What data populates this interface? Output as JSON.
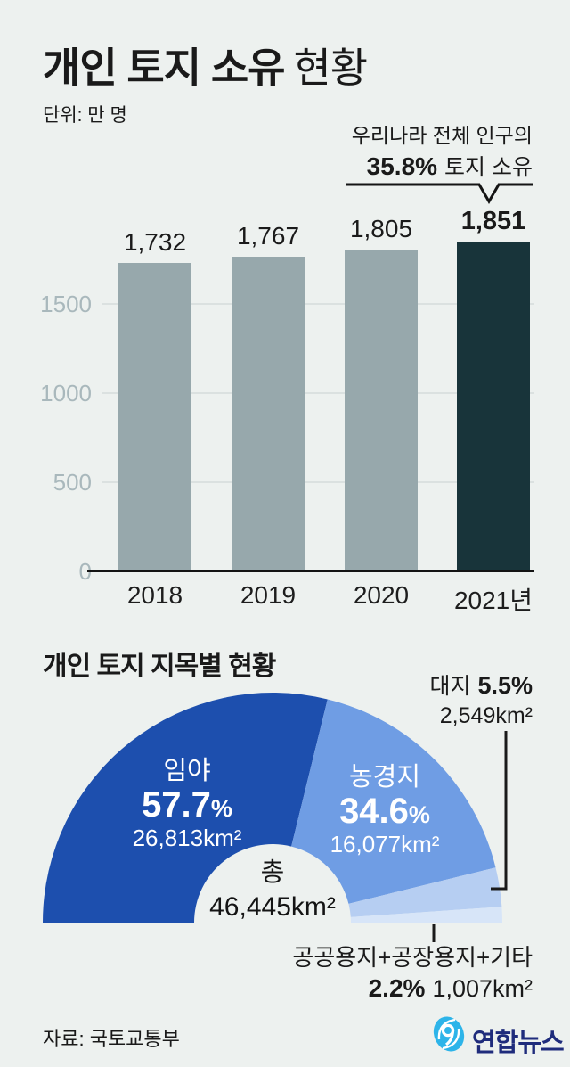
{
  "colors": {
    "background": "#edf1ef",
    "bar_fill": "#97a8ac",
    "bar_highlight": "#18343a",
    "grid": "#dbe1e0",
    "axis": "#141414",
    "tick_text": "#a9b8bc",
    "logo_blue": "#2db4e9",
    "logo_navy": "#1f2c7c",
    "donut_slices": [
      "#1d4fae",
      "#6f9de4",
      "#b6cef2",
      "#d7e5f8"
    ]
  },
  "header": {
    "title_bold": "개인 토지 소유",
    "title_rest": "현황",
    "unit": "단위: 만 명"
  },
  "annotation": {
    "line1": "우리나라 전체 인구의",
    "pct": "35.8%",
    "suffix": "토지 소유"
  },
  "section2_title": "개인 토지 지목별 현황",
  "percent_sign": "%",
  "chart_data": [
    {
      "type": "bar",
      "title": "개인 토지 소유 현황",
      "unit": "만 명",
      "categories": [
        "2018",
        "2019",
        "2020",
        "2021년"
      ],
      "values": [
        1732,
        1767,
        1805,
        1851
      ],
      "value_labels": [
        "1,732",
        "1,767",
        "1,805",
        "1,851"
      ],
      "yticks": [
        0,
        500,
        1000,
        1500
      ],
      "ylim": [
        0,
        2100
      ],
      "grid": true,
      "legend_position": "none",
      "highlight_index": 3,
      "annotation": "우리나라 전체 인구의 35.8% 토지 소유"
    },
    {
      "type": "pie",
      "variant": "semi-donut",
      "title": "개인 토지 지목별 현황",
      "labels": [
        "임야",
        "농경지",
        "대지",
        "공공용지+공장용지+기타"
      ],
      "pct": [
        57.7,
        34.6,
        5.5,
        2.2
      ],
      "pct_display": [
        "57.7%",
        "34.6%",
        "5.5%",
        "2.2%"
      ],
      "pct_num": [
        "57.7",
        "34.6"
      ],
      "areas": [
        "26,813km²",
        "16,077km²",
        "2,549km²",
        "1,007km²"
      ],
      "center_label": "총",
      "center_value": "46,445km²"
    }
  ],
  "footer": {
    "source": "자료: 국토교통부",
    "logo_text": "연합뉴스",
    "logo_icon": "yonhap-swirl-icon"
  }
}
